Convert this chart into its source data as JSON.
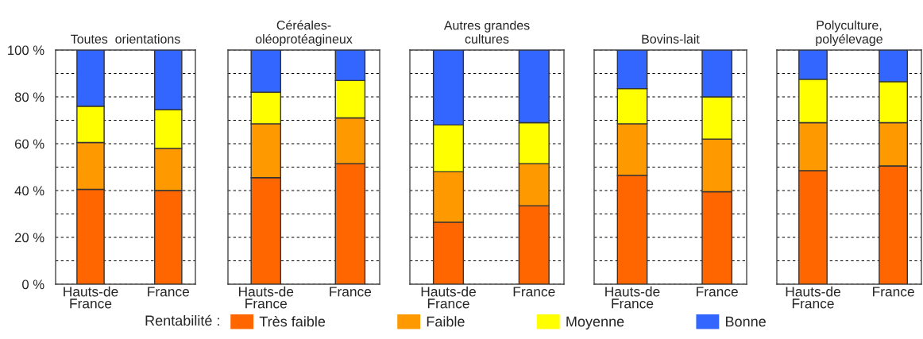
{
  "chart_data": [
    {
      "type": "bar",
      "title": "Toutes  orientations",
      "categories": [
        "Hauts-de\nFrance",
        "France"
      ],
      "stacked": true,
      "legend": "bottom",
      "legend_title": "Rentabilité :",
      "grid": "y",
      "ylim": [
        0,
        100
      ],
      "yticks": [
        {
          "value": 0,
          "label": "0 %"
        },
        {
          "value": 10,
          "label": null
        },
        {
          "value": 20,
          "label": "20 %"
        },
        {
          "value": 30,
          "label": null
        },
        {
          "value": 40,
          "label": "40 %"
        },
        {
          "value": 50,
          "label": null
        },
        {
          "value": 60,
          "label": "60 %"
        },
        {
          "value": 70,
          "label": null
        },
        {
          "value": 80,
          "label": "80 %"
        },
        {
          "value": 90,
          "label": null
        },
        {
          "value": 100,
          "label": "100 %"
        }
      ],
      "series": [
        {
          "name": "Très faible",
          "color": "#ff6600",
          "values": [
            40.5,
            40
          ]
        },
        {
          "name": "Faible",
          "color": "#ff9900",
          "values": [
            20,
            18
          ]
        },
        {
          "name": "Moyenne",
          "color": "#ffff00",
          "values": [
            15.5,
            16.5
          ]
        },
        {
          "name": "Bonne",
          "color": "#3366ff",
          "values": [
            24,
            25.5
          ]
        }
      ]
    },
    {
      "type": "bar",
      "title": "Céréales-\noléoprotéagineux",
      "categories": [
        "Hauts-de\nFrance",
        "France"
      ],
      "stacked": true,
      "grid": "y",
      "tick_labels": "x",
      "ylim": [
        0,
        100
      ],
      "yticks": [
        0,
        10,
        20,
        30,
        40,
        50,
        60,
        70,
        80,
        90,
        100
      ],
      "series": [
        {
          "color": "#ff6600",
          "values": [
            45.5,
            51.5
          ]
        },
        {
          "color": "#ff9900",
          "values": [
            23,
            19.5
          ]
        },
        {
          "color": "#ffff00",
          "values": [
            13.5,
            16
          ]
        },
        {
          "color": "#3366ff",
          "values": [
            18,
            13
          ]
        }
      ]
    },
    {
      "type": "bar",
      "title": "Autres grandes\ncultures",
      "categories": [
        "Hauts-de\nFrance",
        "France"
      ],
      "stacked": true,
      "grid": "y",
      "tick_labels": "x",
      "ylim": [
        0,
        100
      ],
      "yticks": [
        0,
        10,
        20,
        30,
        40,
        50,
        60,
        70,
        80,
        90,
        100
      ],
      "series": [
        {
          "color": "#ff6600",
          "values": [
            26.5,
            33.5
          ]
        },
        {
          "color": "#ff9900",
          "values": [
            21.5,
            18
          ]
        },
        {
          "color": "#ffff00",
          "values": [
            20,
            17.5
          ]
        },
        {
          "color": "#3366ff",
          "values": [
            32,
            31
          ]
        }
      ]
    },
    {
      "type": "bar",
      "title": "Bovins-lait",
      "categories": [
        "Hauts-de\nFrance",
        "France"
      ],
      "stacked": true,
      "grid": "y",
      "tick_labels": "x",
      "ylim": [
        0,
        100
      ],
      "yticks": [
        0,
        10,
        20,
        30,
        40,
        50,
        60,
        70,
        80,
        90,
        100
      ],
      "series": [
        {
          "color": "#ff6600",
          "values": [
            46.5,
            39.5
          ]
        },
        {
          "color": "#ff9900",
          "values": [
            22,
            22.5
          ]
        },
        {
          "color": "#ffff00",
          "values": [
            15,
            18
          ]
        },
        {
          "color": "#3366ff",
          "values": [
            16.5,
            20
          ]
        }
      ]
    },
    {
      "type": "bar",
      "title": "Polyculture,\npolyélevage",
      "categories": [
        "Hauts-de\nFrance",
        "France"
      ],
      "stacked": true,
      "grid": "y",
      "tick_labels": "x",
      "ylim": [
        0,
        100
      ],
      "yticks": [
        0,
        10,
        20,
        30,
        40,
        50,
        60,
        70,
        80,
        90,
        100
      ],
      "series": [
        {
          "color": "#ff6600",
          "values": [
            48.5,
            50.5
          ]
        },
        {
          "color": "#ff9900",
          "values": [
            20.5,
            18.5
          ]
        },
        {
          "color": "#ffff00",
          "values": [
            18.5,
            17.5
          ]
        },
        {
          "color": "#3366ff",
          "values": [
            12.5,
            13.5
          ]
        }
      ]
    }
  ]
}
